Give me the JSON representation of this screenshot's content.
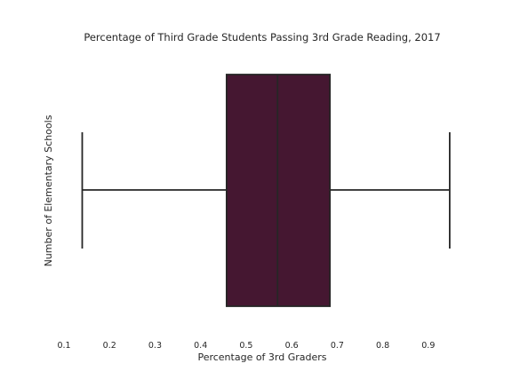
{
  "chart_data": {
    "type": "box",
    "title": "Percentage of Third Grade Students Passing 3rd Grade Reading, 2017",
    "xlabel": "Percentage of 3rd Graders",
    "ylabel": "Number of Elementary Schools",
    "orientation": "horizontal",
    "xlim": [
      0.1,
      0.955
    ],
    "xticks": [
      0.1,
      0.2,
      0.3,
      0.4,
      0.5,
      0.6,
      0.7,
      0.8,
      0.9
    ],
    "xtick_labels": [
      "0.1",
      "0.2",
      "0.3",
      "0.4",
      "0.5",
      "0.6",
      "0.7",
      "0.8",
      "0.9"
    ],
    "grid": false,
    "box": {
      "whisker_low": 0.14,
      "q1": 0.457,
      "median": 0.569,
      "q3": 0.684,
      "whisker_high": 0.947
    },
    "colors": {
      "box_fill": "#451731",
      "line": "#262626",
      "text": "#262626",
      "background": "#ffffff"
    }
  }
}
